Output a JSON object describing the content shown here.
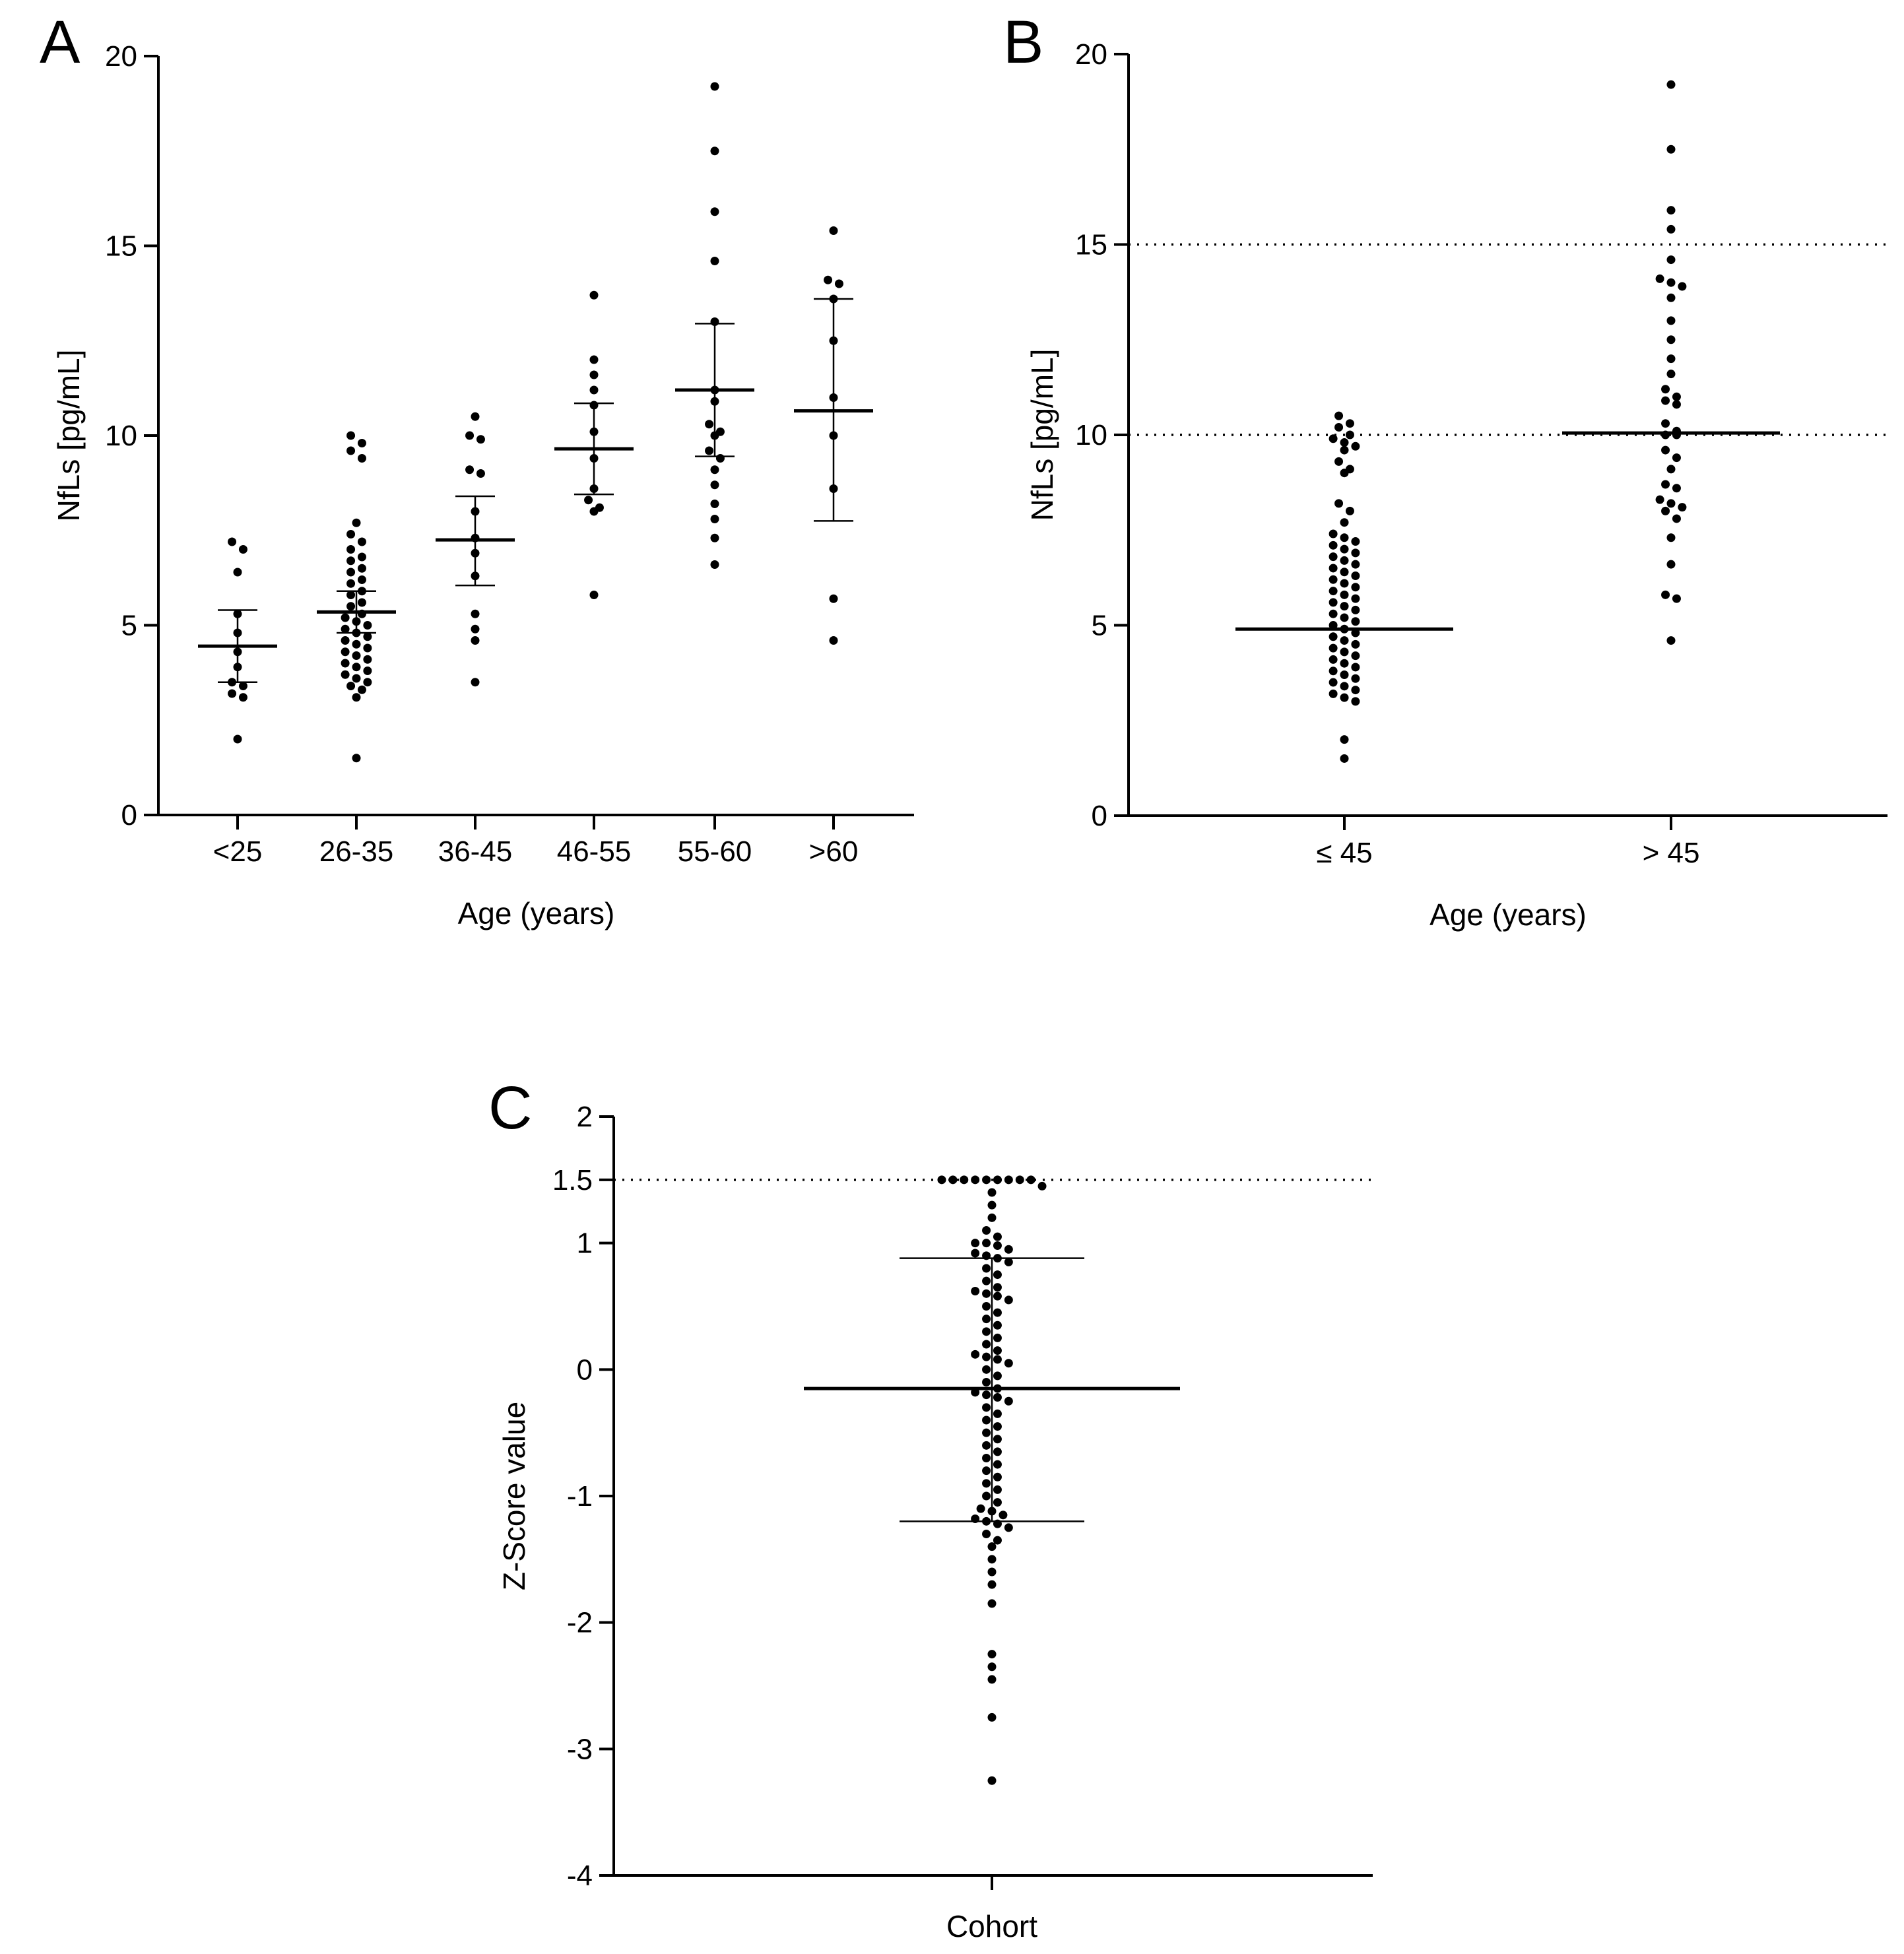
{
  "chart_data": [
    {
      "panel": "A",
      "type": "scatter",
      "title": "",
      "xlabel": "Age (years)",
      "ylabel": "NfLs [pg/mL]",
      "ylim": [
        0,
        20
      ],
      "yticks": [
        0,
        5,
        10,
        15,
        20
      ],
      "categories": [
        "<25",
        "26-35",
        "36-45",
        "46-55",
        "55-60",
        ">60"
      ],
      "points": [
        [
          7.2,
          7.0,
          6.4,
          5.3,
          4.8,
          4.3,
          3.9,
          3.5,
          3.4,
          3.2,
          3.1,
          2.0
        ],
        [
          10.0,
          9.8,
          9.6,
          9.4,
          7.7,
          7.4,
          7.2,
          7.0,
          6.8,
          6.7,
          6.5,
          6.4,
          6.2,
          6.1,
          5.9,
          5.8,
          5.6,
          5.5,
          5.3,
          5.2,
          5.1,
          5.0,
          4.9,
          4.8,
          4.7,
          4.6,
          4.5,
          4.4,
          4.3,
          4.2,
          4.1,
          4.0,
          3.9,
          3.8,
          3.7,
          3.6,
          3.5,
          3.4,
          3.3,
          3.1,
          1.5
        ],
        [
          10.5,
          10.0,
          9.9,
          9.1,
          9.0,
          8.0,
          7.3,
          6.9,
          6.3,
          5.3,
          4.9,
          4.6,
          3.5
        ],
        [
          13.7,
          12.0,
          11.6,
          11.2,
          10.8,
          10.1,
          9.4,
          8.6,
          8.3,
          8.1,
          8.0,
          5.8
        ],
        [
          19.2,
          17.5,
          15.9,
          14.6,
          13.0,
          11.2,
          10.9,
          10.3,
          10.1,
          10.0,
          9.6,
          9.4,
          9.1,
          8.7,
          8.2,
          7.8,
          7.3,
          6.6
        ],
        [
          15.4,
          14.1,
          14.0,
          13.6,
          12.5,
          11.0,
          10.0,
          8.6,
          5.7,
          4.6
        ]
      ],
      "mean": [
        4.45,
        5.35,
        7.25,
        9.65,
        11.2,
        10.65
      ],
      "error_upper": [
        5.4,
        5.9,
        8.4,
        10.85,
        12.95,
        13.6
      ],
      "error_lower": [
        3.5,
        4.8,
        6.05,
        8.45,
        9.45,
        7.75
      ]
    },
    {
      "panel": "B",
      "type": "scatter",
      "title": "",
      "xlabel": "Age (years)",
      "ylabel": "NfLs [pg/mL]",
      "ylim": [
        0,
        20
      ],
      "yticks": [
        0,
        5,
        10,
        15,
        20
      ],
      "categories": [
        "≤ 45",
        "> 45"
      ],
      "reference_lines": [
        10,
        15
      ],
      "points": [
        [
          10.5,
          10.3,
          10.2,
          10.0,
          9.9,
          9.8,
          9.7,
          9.6,
          9.3,
          9.1,
          9.0,
          8.2,
          8.0,
          7.7,
          7.4,
          7.3,
          7.2,
          7.1,
          7.0,
          6.9,
          6.8,
          6.7,
          6.6,
          6.5,
          6.4,
          6.3,
          6.2,
          6.1,
          6.0,
          5.9,
          5.8,
          5.7,
          5.6,
          5.5,
          5.4,
          5.3,
          5.2,
          5.1,
          5.0,
          4.9,
          4.8,
          4.7,
          4.6,
          4.5,
          4.4,
          4.3,
          4.2,
          4.1,
          4.0,
          3.9,
          3.8,
          3.7,
          3.6,
          3.5,
          3.4,
          3.3,
          3.2,
          3.1,
          3.0,
          2.0,
          1.5
        ],
        [
          19.2,
          17.5,
          15.9,
          15.4,
          14.6,
          14.1,
          14.0,
          13.9,
          13.6,
          13.0,
          12.5,
          12.0,
          11.6,
          11.2,
          11.0,
          10.9,
          10.8,
          10.3,
          10.1,
          10.0,
          10.0,
          9.6,
          9.4,
          9.1,
          8.7,
          8.6,
          8.3,
          8.2,
          8.1,
          8.0,
          7.8,
          7.3,
          6.6,
          5.8,
          5.7,
          4.6
        ]
      ],
      "mean": [
        4.9,
        10.05
      ]
    },
    {
      "panel": "C",
      "type": "scatter",
      "title": "",
      "xlabel": "",
      "ylabel": "Z-Score value",
      "ylim": [
        -4,
        2
      ],
      "yticks": [
        -4,
        -3,
        -2,
        -1,
        0,
        1,
        1.5,
        2
      ],
      "ytick_labels": [
        "-4",
        "-3",
        "-2",
        "-1",
        "0",
        "1",
        "1.5",
        "2"
      ],
      "categories": [
        "Cohort"
      ],
      "reference_lines": [
        1.5
      ],
      "points": [
        [
          1.5,
          1.5,
          1.5,
          1.5,
          1.5,
          1.5,
          1.5,
          1.5,
          1.5,
          1.45,
          1.4,
          1.3,
          1.2,
          1.1,
          1.05,
          1.0,
          1.0,
          0.98,
          0.95,
          0.92,
          0.9,
          0.88,
          0.85,
          0.8,
          0.75,
          0.7,
          0.65,
          0.62,
          0.6,
          0.58,
          0.55,
          0.5,
          0.45,
          0.4,
          0.35,
          0.3,
          0.25,
          0.2,
          0.15,
          0.12,
          0.1,
          0.08,
          0.05,
          0.0,
          -0.05,
          -0.1,
          -0.15,
          -0.18,
          -0.2,
          -0.22,
          -0.25,
          -0.3,
          -0.35,
          -0.4,
          -0.45,
          -0.5,
          -0.55,
          -0.6,
          -0.65,
          -0.7,
          -0.75,
          -0.8,
          -0.85,
          -0.9,
          -0.95,
          -1.0,
          -1.05,
          -1.1,
          -1.12,
          -1.15,
          -1.18,
          -1.2,
          -1.22,
          -1.25,
          -1.3,
          -1.35,
          -1.4,
          -1.5,
          -1.6,
          -1.7,
          -1.85,
          -2.25,
          -2.35,
          -2.45,
          -2.75,
          -3.25
        ]
      ],
      "mean": [
        -0.15
      ],
      "error_upper": [
        0.88
      ],
      "error_lower": [
        -1.2
      ]
    }
  ],
  "panel_labels": [
    "A",
    "B",
    "C"
  ]
}
